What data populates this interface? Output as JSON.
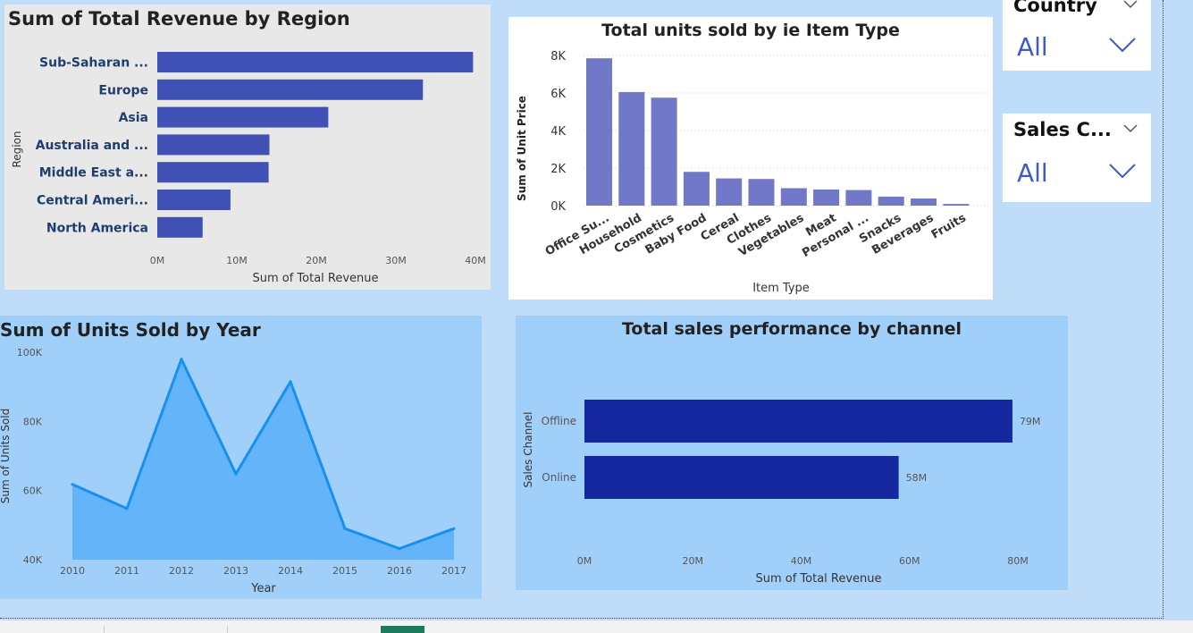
{
  "slicers": [
    {
      "title": "Country",
      "value": "All"
    },
    {
      "title": "Sales C...",
      "value": "All"
    }
  ],
  "chart_data": [
    {
      "type": "bar",
      "orientation": "horizontal",
      "title": "Sum of Total Revenue by Region",
      "xlabel": "Sum of Total Revenue",
      "ylabel": "Region",
      "categories": [
        "Sub-Saharan ...",
        "Europe",
        "Asia",
        "Australia and ...",
        "Middle East a...",
        "Central Ameri...",
        "North America"
      ],
      "values": [
        39.7,
        33.4,
        21.5,
        14.1,
        14.0,
        9.2,
        5.7
      ],
      "value_unit": "M",
      "xlim": [
        0,
        40
      ],
      "xticks": [
        "0M",
        "10M",
        "20M",
        "30M",
        "40M"
      ],
      "bar_color": "#3f51b5",
      "grid": false
    },
    {
      "type": "bar",
      "title": "Total units sold by ie Item Type",
      "xlabel": "Item Type",
      "ylabel": "Sum of Unit Price",
      "categories": [
        "Office Su...",
        "Household",
        "Cosmetics",
        "Baby Food",
        "Cereal",
        "Clothes",
        "Vegetables",
        "Meat",
        "Personal ...",
        "Snacks",
        "Beverages",
        "Fruits"
      ],
      "values": [
        7850,
        6050,
        5750,
        1800,
        1450,
        1420,
        930,
        860,
        830,
        480,
        380,
        90
      ],
      "ylim": [
        0,
        8000
      ],
      "yticks": [
        "0K",
        "2K",
        "4K",
        "6K",
        "8K"
      ],
      "bar_color": "#7178c8",
      "grid": true
    },
    {
      "type": "area",
      "title": "Sum of Units Sold by Year",
      "xlabel": "Year",
      "ylabel": "Sum of Units Sold",
      "x": [
        "2010",
        "2011",
        "2012",
        "2013",
        "2014",
        "2015",
        "2016",
        "2017"
      ],
      "values": [
        61800,
        54800,
        98000,
        64800,
        91500,
        49000,
        43200,
        49000
      ],
      "ylim": [
        40000,
        100000
      ],
      "yticks": [
        "40K",
        "60K",
        "80K",
        "100K"
      ],
      "line_color": "#1890f0",
      "fill_color": "#64b4fa",
      "grid": false
    },
    {
      "type": "bar",
      "orientation": "horizontal",
      "title": "Total sales performance by channel",
      "xlabel": "Sum of Total Revenue",
      "ylabel": "Sales Channel",
      "categories": [
        "Offline",
        "Online"
      ],
      "values": [
        79,
        58
      ],
      "value_unit": "M",
      "data_labels": [
        "79M",
        "58M"
      ],
      "xlim": [
        0,
        80
      ],
      "xticks": [
        "0M",
        "20M",
        "40M",
        "60M",
        "80M"
      ],
      "bar_color": "#1528a0",
      "grid": false
    }
  ]
}
